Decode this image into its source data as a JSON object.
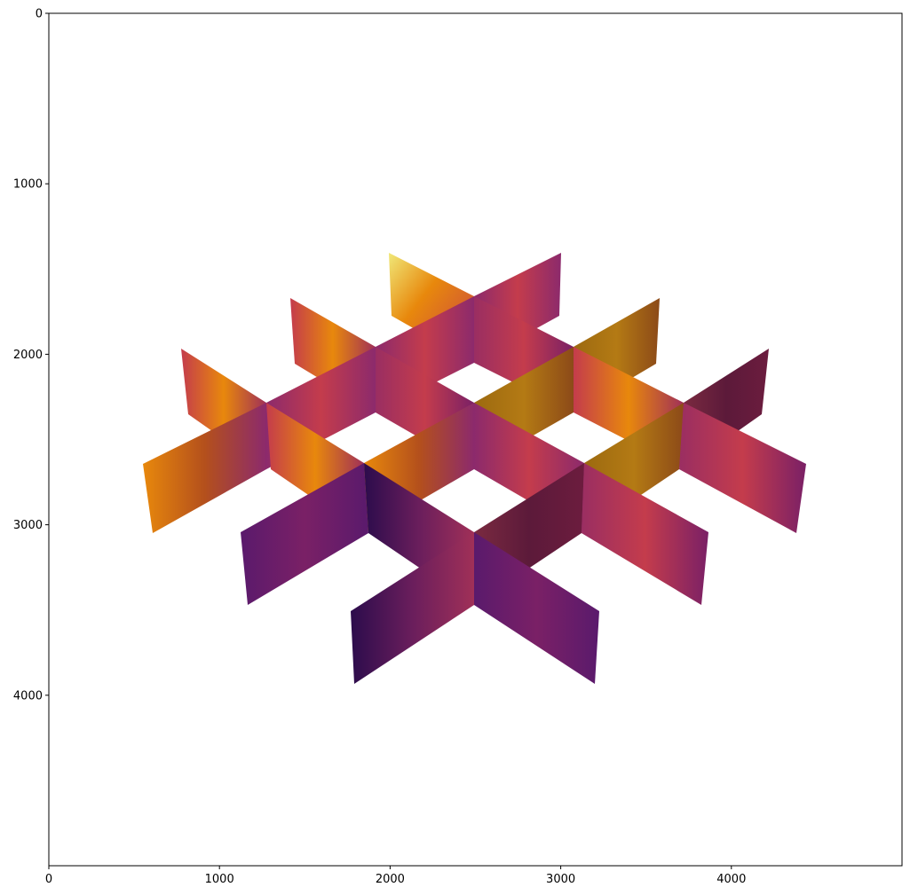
{
  "chart_data": {
    "type": "heatmap",
    "title": "",
    "xlabel": "",
    "ylabel": "",
    "xlim": [
      0,
      5000
    ],
    "ylim": [
      5000,
      0
    ],
    "y_inverted": true,
    "grid": false,
    "colormap": "inferno",
    "image_content": "3D perspective render of an intersecting grid of vertical heat-map slices",
    "x_ticks": [
      {
        "value": 0,
        "label": "0"
      },
      {
        "value": 1000,
        "label": "1000"
      },
      {
        "value": 2000,
        "label": "2000"
      },
      {
        "value": 3000,
        "label": "3000"
      },
      {
        "value": 4000,
        "label": "4000"
      }
    ],
    "y_ticks": [
      {
        "value": 0,
        "label": "0"
      },
      {
        "value": 1000,
        "label": "1000"
      },
      {
        "value": 2000,
        "label": "2000"
      },
      {
        "value": 3000,
        "label": "3000"
      },
      {
        "value": 4000,
        "label": "4000"
      }
    ]
  },
  "colors": {
    "axes": "#000000",
    "background": "#ffffff",
    "slice_light": "#f0e878",
    "slice_orange": "#e8880c",
    "slice_red": "#c43c4c",
    "slice_magenta": "#8c2a6c",
    "slice_purple": "#5a1a6c",
    "slice_dark": "#2c0c4c"
  }
}
